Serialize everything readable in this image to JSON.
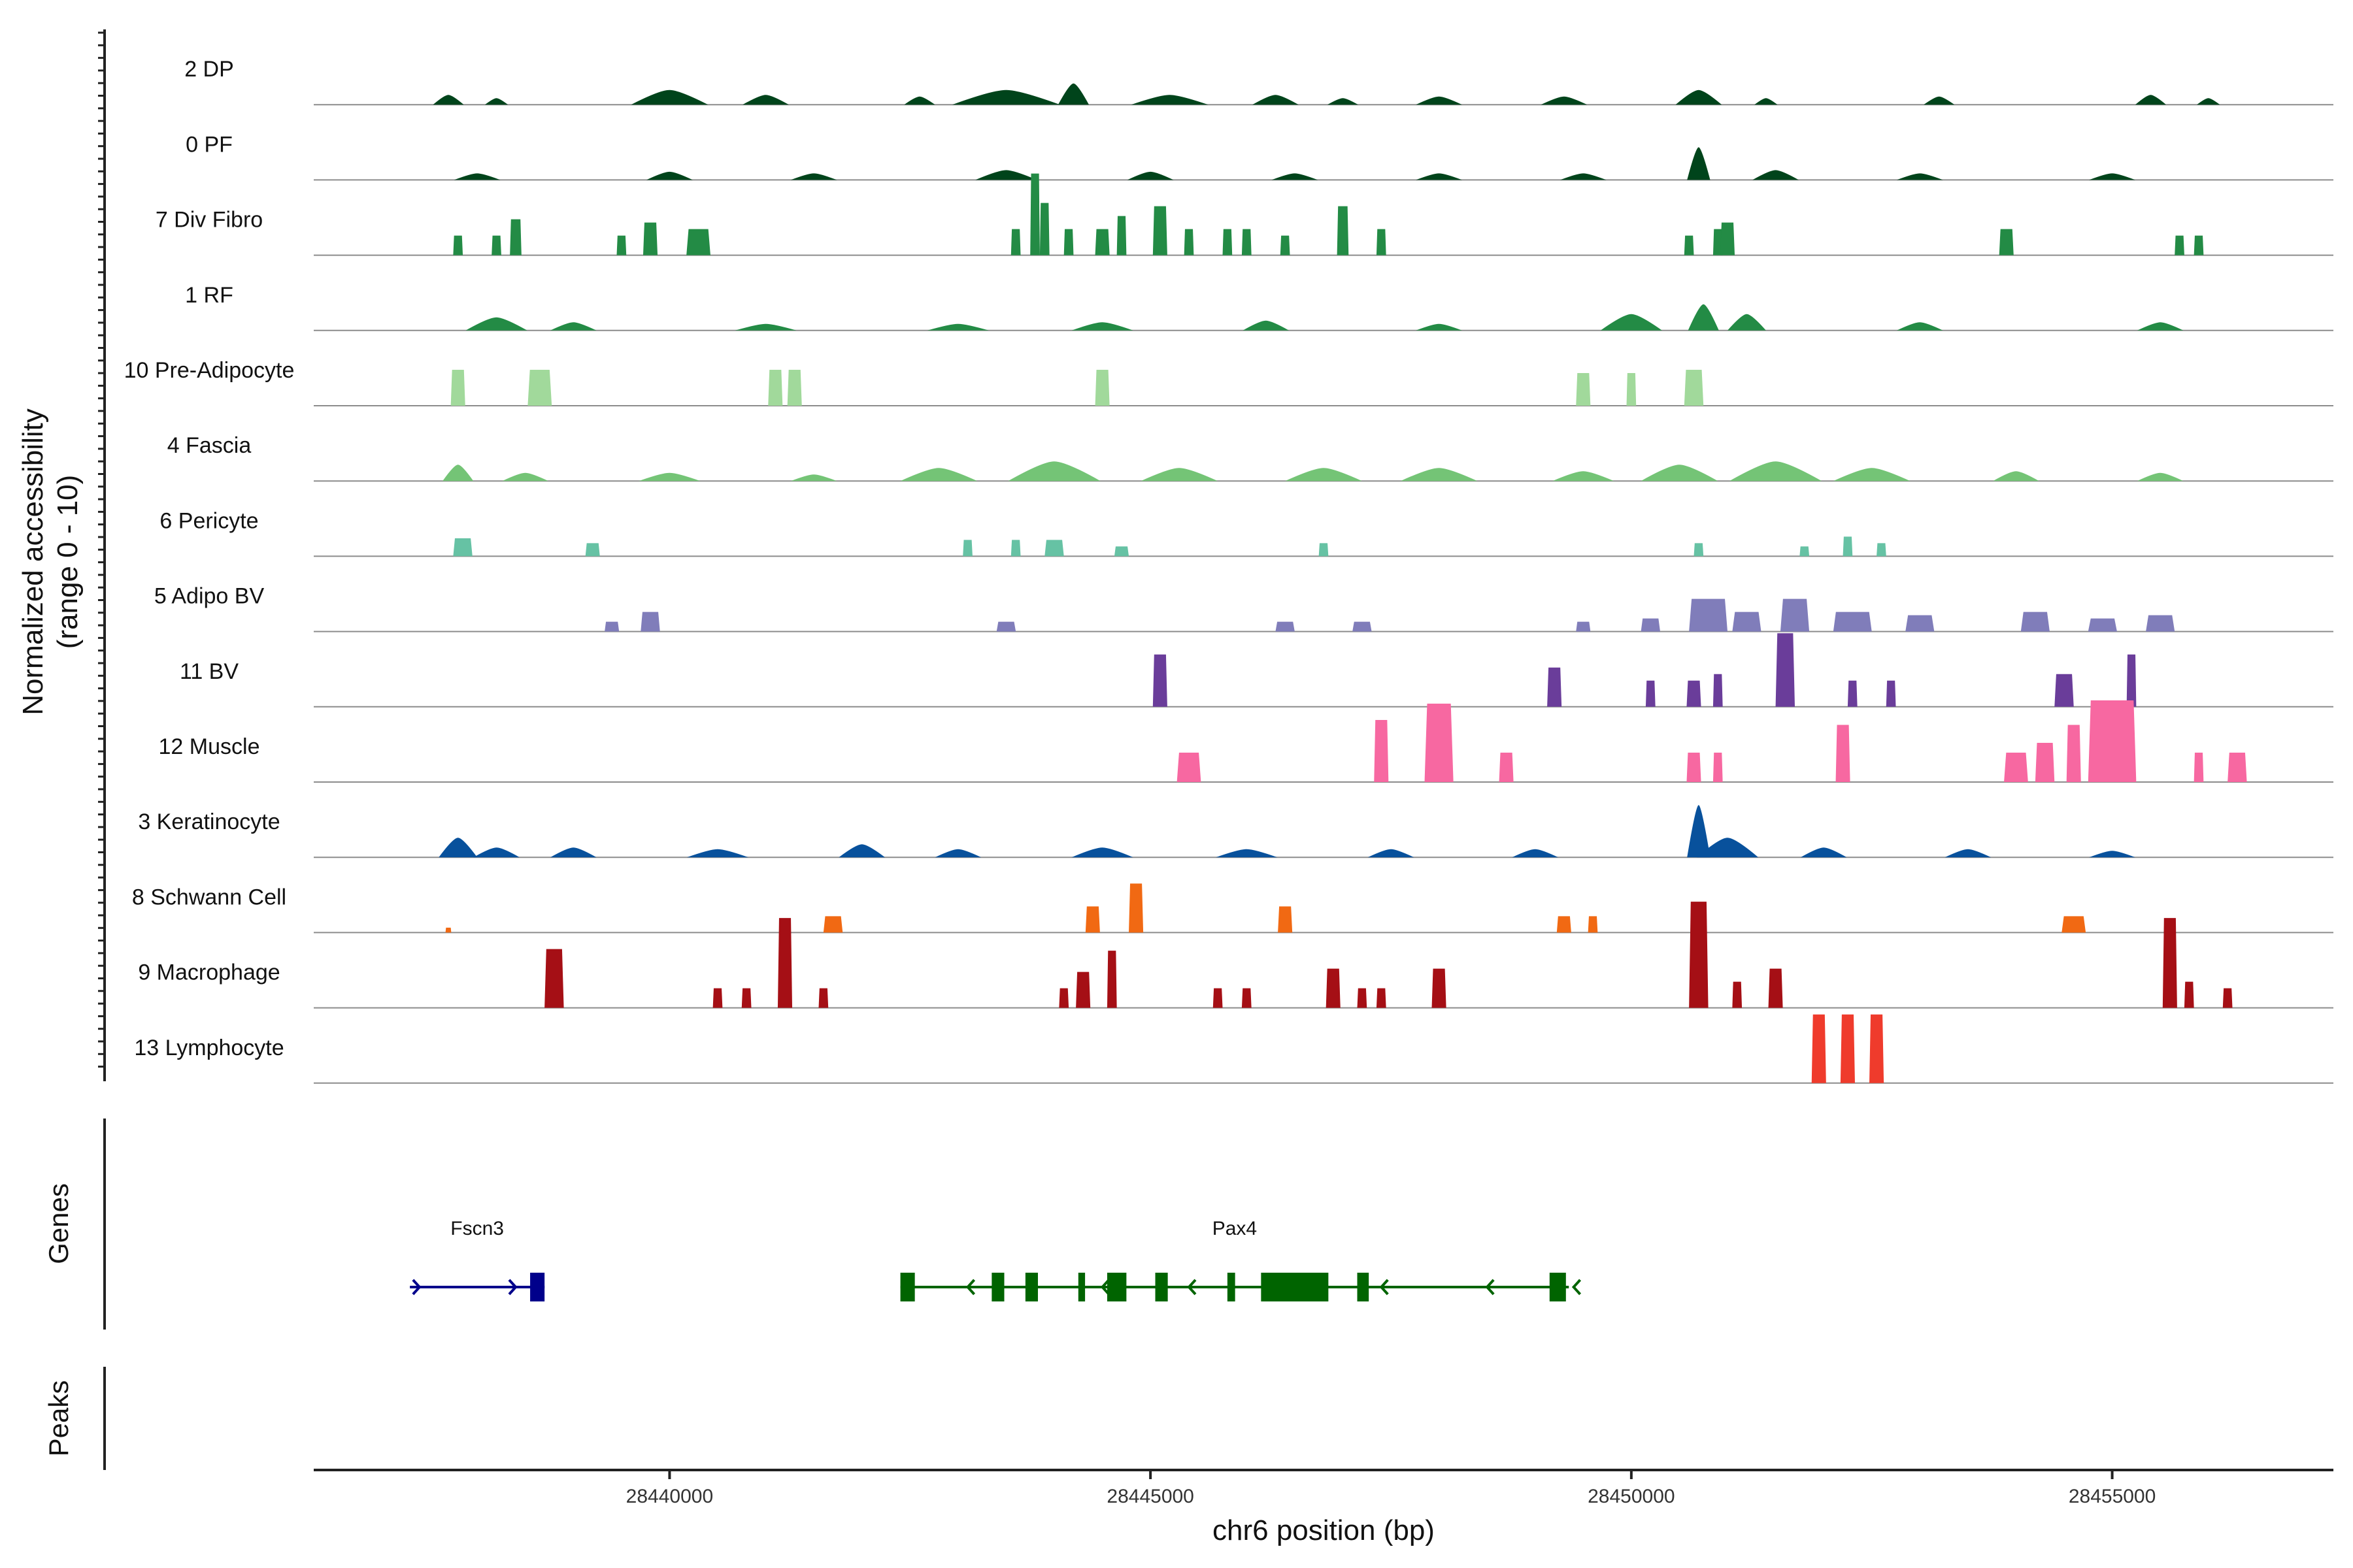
{
  "chart_data": {
    "type": "coverage",
    "xlabel": "chr6 position (bp)",
    "ylabel": "Normalized accessibility",
    "ylabel_sub": "(range 0 - 10)",
    "xlim": [
      28436300,
      28457300
    ],
    "ylim": [
      0,
      10
    ],
    "x_ticks": [
      28440000,
      28445000,
      28450000,
      28455000
    ],
    "x_tick_labels": [
      "28440000",
      "28445000",
      "28450000",
      "28455000"
    ],
    "section_titles": {
      "genes": "Genes",
      "peaks": "Peaks"
    },
    "tracks": [
      {
        "name": "2 DP",
        "color": "#00441b",
        "mode": "continuous",
        "peaks": [
          [
            28437700,
            0.6,
            200
          ],
          [
            28438200,
            0.4,
            150
          ],
          [
            28440000,
            0.9,
            500
          ],
          [
            28441000,
            0.6,
            300
          ],
          [
            28442600,
            0.5,
            200
          ],
          [
            28443500,
            0.9,
            700
          ],
          [
            28444200,
            1.3,
            200
          ],
          [
            28445200,
            0.6,
            500
          ],
          [
            28446300,
            0.6,
            300
          ],
          [
            28447000,
            0.4,
            200
          ],
          [
            28448000,
            0.5,
            300
          ],
          [
            28449300,
            0.5,
            300
          ],
          [
            28450700,
            0.9,
            300
          ],
          [
            28451400,
            0.4,
            150
          ],
          [
            28453200,
            0.5,
            200
          ],
          [
            28455400,
            0.6,
            200
          ],
          [
            28456000,
            0.4,
            150
          ]
        ]
      },
      {
        "name": "0 PF",
        "color": "#00441b",
        "mode": "continuous",
        "peaks": [
          [
            28438000,
            0.4,
            300
          ],
          [
            28440000,
            0.5,
            300
          ],
          [
            28441500,
            0.4,
            300
          ],
          [
            28443500,
            0.6,
            400
          ],
          [
            28445000,
            0.5,
            300
          ],
          [
            28446500,
            0.4,
            300
          ],
          [
            28448000,
            0.4,
            300
          ],
          [
            28449500,
            0.4,
            300
          ],
          [
            28450700,
            2.0,
            150
          ],
          [
            28451500,
            0.6,
            300
          ],
          [
            28453000,
            0.4,
            300
          ],
          [
            28455000,
            0.4,
            300
          ]
        ]
      },
      {
        "name": "7 Div Fibro",
        "color": "#238b45",
        "mode": "blocks",
        "peaks": [
          [
            28437800,
            1.2,
            100
          ],
          [
            28438200,
            1.2,
            100
          ],
          [
            28438400,
            2.2,
            120
          ],
          [
            28439500,
            1.2,
            100
          ],
          [
            28439800,
            2.0,
            150
          ],
          [
            28440300,
            1.6,
            250
          ],
          [
            28443600,
            1.6,
            100
          ],
          [
            28443800,
            5.0,
            100
          ],
          [
            28443900,
            3.2,
            100
          ],
          [
            28444150,
            1.6,
            100
          ],
          [
            28444500,
            1.6,
            150
          ],
          [
            28444700,
            2.4,
            100
          ],
          [
            28445100,
            3.0,
            150
          ],
          [
            28445400,
            1.6,
            100
          ],
          [
            28445800,
            1.6,
            100
          ],
          [
            28446000,
            1.6,
            100
          ],
          [
            28446400,
            1.2,
            100
          ],
          [
            28447000,
            3.0,
            120
          ],
          [
            28447400,
            1.6,
            100
          ],
          [
            28450600,
            1.2,
            100
          ],
          [
            28450900,
            1.6,
            100
          ],
          [
            28451000,
            2.0,
            150
          ],
          [
            28453900,
            1.6,
            150
          ],
          [
            28455700,
            1.2,
            100
          ],
          [
            28455900,
            1.2,
            100
          ]
        ]
      },
      {
        "name": "1 RF",
        "color": "#238b45",
        "mode": "continuous",
        "peaks": [
          [
            28438200,
            0.8,
            400
          ],
          [
            28439000,
            0.5,
            300
          ],
          [
            28441000,
            0.4,
            400
          ],
          [
            28443000,
            0.4,
            400
          ],
          [
            28444500,
            0.5,
            400
          ],
          [
            28446200,
            0.6,
            300
          ],
          [
            28448000,
            0.4,
            300
          ],
          [
            28450000,
            1.0,
            400
          ],
          [
            28450750,
            1.6,
            200
          ],
          [
            28451200,
            1.0,
            250
          ],
          [
            28453000,
            0.5,
            300
          ],
          [
            28455500,
            0.5,
            300
          ]
        ]
      },
      {
        "name": "10 Pre-Adipocyte",
        "color": "#a1d99b",
        "mode": "blocks",
        "peaks": [
          [
            28437800,
            2.2,
            150
          ],
          [
            28438650,
            2.2,
            250
          ],
          [
            28441100,
            2.2,
            150
          ],
          [
            28441300,
            2.2,
            150
          ],
          [
            28444500,
            2.2,
            150
          ],
          [
            28449500,
            2.0,
            150
          ],
          [
            28450000,
            2.0,
            100
          ],
          [
            28450650,
            2.2,
            200
          ]
        ]
      },
      {
        "name": "4 Fascia",
        "color": "#74c476",
        "mode": "continuous",
        "peaks": [
          [
            28437800,
            1.0,
            200
          ],
          [
            28438500,
            0.5,
            300
          ],
          [
            28440000,
            0.5,
            400
          ],
          [
            28441500,
            0.4,
            300
          ],
          [
            28442800,
            0.8,
            500
          ],
          [
            28444000,
            1.2,
            600
          ],
          [
            28445300,
            0.8,
            500
          ],
          [
            28446800,
            0.8,
            500
          ],
          [
            28448000,
            0.8,
            500
          ],
          [
            28449500,
            0.6,
            400
          ],
          [
            28450500,
            1.0,
            500
          ],
          [
            28451500,
            1.2,
            600
          ],
          [
            28452500,
            0.8,
            500
          ],
          [
            28454000,
            0.6,
            300
          ],
          [
            28455500,
            0.5,
            300
          ]
        ]
      },
      {
        "name": "6 Pericyte",
        "color": "#66c2a4",
        "mode": "blocks",
        "peaks": [
          [
            28437850,
            1.1,
            200
          ],
          [
            28439200,
            0.8,
            150
          ],
          [
            28443100,
            1.0,
            100
          ],
          [
            28443600,
            1.0,
            100
          ],
          [
            28444000,
            1.0,
            200
          ],
          [
            28444700,
            0.6,
            150
          ],
          [
            28446800,
            0.8,
            100
          ],
          [
            28450700,
            0.8,
            100
          ],
          [
            28451800,
            0.6,
            100
          ],
          [
            28452250,
            1.2,
            100
          ],
          [
            28452600,
            0.8,
            100
          ]
        ]
      },
      {
        "name": "5 Adipo BV",
        "color": "#807dba",
        "mode": "blocks",
        "peaks": [
          [
            28439400,
            0.6,
            150
          ],
          [
            28439800,
            1.2,
            200
          ],
          [
            28443500,
            0.6,
            200
          ],
          [
            28446400,
            0.6,
            200
          ],
          [
            28447200,
            0.6,
            200
          ],
          [
            28449500,
            0.6,
            150
          ],
          [
            28450200,
            0.8,
            200
          ],
          [
            28450800,
            2.0,
            400
          ],
          [
            28451200,
            1.2,
            300
          ],
          [
            28451700,
            2.0,
            300
          ],
          [
            28452300,
            1.2,
            400
          ],
          [
            28453000,
            1.0,
            300
          ],
          [
            28454200,
            1.2,
            300
          ],
          [
            28454900,
            0.8,
            300
          ],
          [
            28455500,
            1.0,
            300
          ]
        ]
      },
      {
        "name": "11 BV",
        "color": "#6a3d9a",
        "mode": "blocks",
        "peaks": [
          [
            28445100,
            3.2,
            150
          ],
          [
            28449200,
            2.4,
            150
          ],
          [
            28450200,
            1.6,
            100
          ],
          [
            28450650,
            1.6,
            150
          ],
          [
            28450900,
            2.0,
            100
          ],
          [
            28451600,
            4.5,
            200
          ],
          [
            28452300,
            1.6,
            100
          ],
          [
            28452700,
            1.6,
            100
          ],
          [
            28454500,
            2.0,
            200
          ],
          [
            28455200,
            3.2,
            100
          ]
        ]
      },
      {
        "name": "12 Muscle",
        "color": "#f768a1",
        "mode": "blocks",
        "peaks": [
          [
            28445400,
            1.8,
            250
          ],
          [
            28447400,
            3.8,
            150
          ],
          [
            28448000,
            4.8,
            300
          ],
          [
            28448700,
            1.8,
            150
          ],
          [
            28450650,
            1.8,
            150
          ],
          [
            28450900,
            1.8,
            100
          ],
          [
            28452200,
            3.5,
            150
          ],
          [
            28454000,
            1.8,
            250
          ],
          [
            28454300,
            2.4,
            200
          ],
          [
            28454600,
            3.5,
            150
          ],
          [
            28455000,
            5.0,
            500
          ],
          [
            28455900,
            1.8,
            100
          ],
          [
            28456300,
            1.8,
            200
          ]
        ]
      },
      {
        "name": "3 Keratinocyte",
        "color": "#08519c",
        "mode": "continuous",
        "peaks": [
          [
            28437800,
            1.2,
            250
          ],
          [
            28438200,
            0.6,
            300
          ],
          [
            28439000,
            0.6,
            300
          ],
          [
            28440500,
            0.5,
            400
          ],
          [
            28442000,
            0.8,
            300
          ],
          [
            28443000,
            0.5,
            300
          ],
          [
            28444500,
            0.6,
            400
          ],
          [
            28446000,
            0.5,
            400
          ],
          [
            28447500,
            0.5,
            300
          ],
          [
            28449000,
            0.5,
            300
          ],
          [
            28450700,
            3.2,
            150
          ],
          [
            28451000,
            1.2,
            400
          ],
          [
            28452000,
            0.6,
            300
          ],
          [
            28453500,
            0.5,
            300
          ],
          [
            28455000,
            0.4,
            300
          ]
        ]
      },
      {
        "name": "8 Schwann Cell",
        "color": "#f16913",
        "mode": "blocks",
        "peaks": [
          [
            28437700,
            0.3,
            60
          ],
          [
            28441700,
            1.0,
            200
          ],
          [
            28444400,
            1.6,
            150
          ],
          [
            28444850,
            3.0,
            150
          ],
          [
            28446400,
            1.6,
            150
          ],
          [
            28449300,
            1.0,
            150
          ],
          [
            28449600,
            1.0,
            100
          ],
          [
            28454600,
            1.0,
            250
          ]
        ]
      },
      {
        "name": "9 Macrophage",
        "color": "#a50f15",
        "mode": "blocks",
        "peaks": [
          [
            28438800,
            3.6,
            200
          ],
          [
            28440500,
            1.2,
            100
          ],
          [
            28440800,
            1.2,
            100
          ],
          [
            28441200,
            5.5,
            150
          ],
          [
            28441600,
            1.2,
            100
          ],
          [
            28444100,
            1.2,
            100
          ],
          [
            28444300,
            2.2,
            150
          ],
          [
            28444600,
            3.5,
            100
          ],
          [
            28445700,
            1.2,
            100
          ],
          [
            28446000,
            1.2,
            100
          ],
          [
            28446900,
            2.4,
            150
          ],
          [
            28447200,
            1.2,
            100
          ],
          [
            28447400,
            1.2,
            100
          ],
          [
            28448000,
            2.4,
            150
          ],
          [
            28450700,
            6.5,
            200
          ],
          [
            28451100,
            1.6,
            100
          ],
          [
            28451500,
            2.4,
            150
          ],
          [
            28455600,
            5.5,
            150
          ],
          [
            28455800,
            1.6,
            100
          ],
          [
            28456200,
            1.2,
            100
          ]
        ]
      },
      {
        "name": "13 Lymphocyte",
        "color": "#ef3b2c",
        "mode": "blocks",
        "peaks": [
          [
            28451950,
            4.2,
            150
          ],
          [
            28452250,
            4.2,
            150
          ],
          [
            28452550,
            4.2,
            150
          ]
        ]
      }
    ],
    "genes": [
      {
        "name": "Fscn3",
        "color": "#00008b",
        "strand": "+",
        "start": 28437300,
        "end": 28438700,
        "exons": [
          [
            28438550,
            28438700
          ]
        ],
        "arrows": [
          28437400,
          28438400
        ]
      },
      {
        "name": "Pax4",
        "color": "#006400",
        "strand": "-",
        "start": 28442400,
        "end": 28449350,
        "exons": [
          [
            28442400,
            28442550
          ],
          [
            28443350,
            28443480
          ],
          [
            28443700,
            28443830
          ],
          [
            28444250,
            28444320
          ],
          [
            28444550,
            28444750
          ],
          [
            28445050,
            28445180
          ],
          [
            28445800,
            28445880
          ],
          [
            28446150,
            28446850
          ],
          [
            28447150,
            28447270
          ],
          [
            28449150,
            28449320
          ]
        ],
        "arrows": [
          28443100,
          28444500,
          28445400,
          28447400,
          28448500,
          28449400
        ]
      }
    ]
  }
}
